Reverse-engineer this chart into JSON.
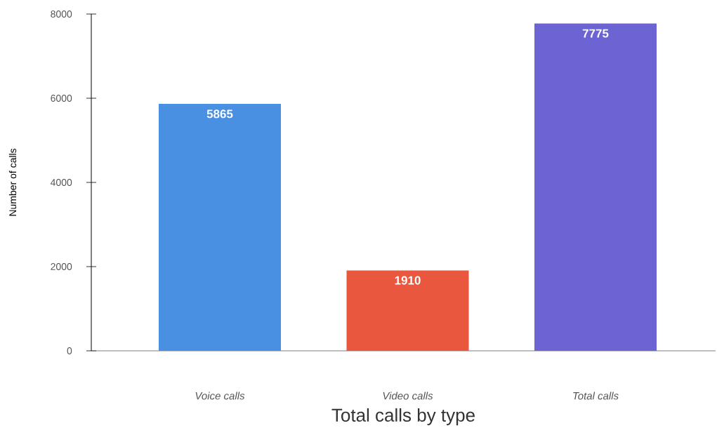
{
  "chart_data": {
    "type": "bar",
    "title": "Total calls by type",
    "ylabel": "Number of calls",
    "categories": [
      "Voice calls",
      "Video calls",
      "Total calls"
    ],
    "values": [
      5865,
      1910,
      7775
    ],
    "colors": [
      "#4a90e2",
      "#e8573e",
      "#6c64d2"
    ],
    "ylim": [
      0,
      8000
    ],
    "yticks": [
      0,
      2000,
      4000,
      6000,
      8000
    ],
    "data_labels": true
  }
}
